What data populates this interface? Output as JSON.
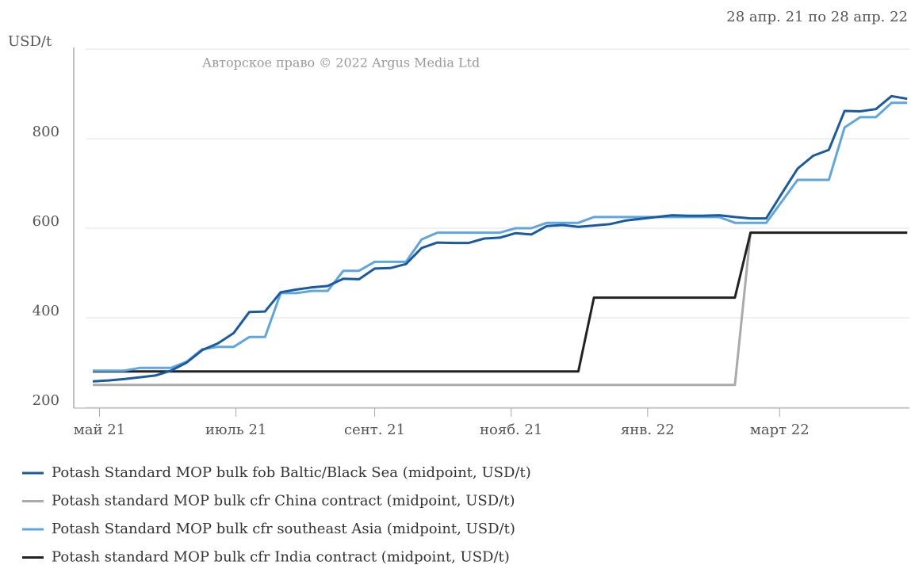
{
  "chart_data": {
    "type": "line",
    "subtitle": "28 апр. 21 по 28 апр. 22",
    "y_label": "USD/t",
    "annotation": "Авторское право © 2022 Argus Media Ltd",
    "x": [
      0,
      7,
      14,
      21,
      28,
      35,
      42,
      49,
      56,
      63,
      70,
      77,
      84,
      91,
      98,
      105,
      112,
      119,
      126,
      133,
      140,
      147,
      154,
      161,
      168,
      175,
      182,
      189,
      196,
      203,
      210,
      217,
      224,
      231,
      238,
      245,
      252,
      259,
      266,
      273,
      280,
      287,
      294,
      301,
      308,
      315,
      322,
      329,
      336,
      343,
      350,
      357,
      364
    ],
    "xlim": [
      0,
      365
    ],
    "xticks": [
      {
        "value": 3,
        "label": "май 21"
      },
      {
        "value": 64,
        "label": "июль 21"
      },
      {
        "value": 126,
        "label": "сент. 21"
      },
      {
        "value": 187,
        "label": "нояб. 21"
      },
      {
        "value": 248,
        "label": "янв. 22"
      },
      {
        "value": 307,
        "label": "март 22"
      }
    ],
    "ylim": [
      200,
      1000
    ],
    "yticks": [
      200,
      400,
      600,
      800
    ],
    "grid": true,
    "series": [
      {
        "name": "Potash Standard MOP bulk fob Baltic/Black Sea (midpoint, USD/t)",
        "color": "#1a5aa0",
        "values": [
          258,
          260,
          263,
          267,
          271,
          282,
          300,
          328,
          343,
          366,
          413,
          414,
          457,
          463,
          468,
          471,
          487,
          486,
          510,
          511,
          520,
          556,
          568,
          567,
          567,
          577,
          579,
          589,
          586,
          605,
          607,
          603,
          606,
          609,
          617,
          621,
          625,
          629,
          628,
          628,
          629,
          625,
          622,
          622,
          678,
          733,
          762,
          775,
          862,
          861,
          866,
          895,
          889
        ]
      },
      {
        "name": "Potash standard MOP bulk cfr China contract (midpoint, USD/t)",
        "color": "#aaaaaa",
        "values": [
          250,
          250,
          250,
          250,
          250,
          250,
          250,
          250,
          250,
          250,
          250,
          250,
          250,
          250,
          250,
          250,
          250,
          250,
          250,
          250,
          250,
          250,
          250,
          250,
          250,
          250,
          250,
          250,
          250,
          250,
          250,
          250,
          250,
          250,
          250,
          250,
          250,
          250,
          250,
          250,
          250,
          250,
          590,
          590,
          590,
          590,
          590,
          590,
          590,
          590,
          590,
          590,
          590
        ]
      },
      {
        "name": "Potash Standard MOP bulk cfr southeast Asia (midpoint, USD/t)",
        "color": "#5ea6dd",
        "values": [
          282,
          282,
          282,
          288,
          288,
          288,
          302,
          330,
          335,
          335,
          357,
          357,
          455,
          455,
          460,
          460,
          505,
          505,
          525,
          525,
          525,
          575,
          590,
          590,
          590,
          590,
          590,
          600,
          600,
          612,
          612,
          612,
          625,
          625,
          625,
          625,
          625,
          625,
          625,
          625,
          625,
          612,
          612,
          612,
          660,
          708,
          708,
          708,
          825,
          848,
          848,
          880,
          880
        ]
      },
      {
        "name": "Potash standard MOP bulk cfr India contract (midpoint, USD/t)",
        "color": "#222222",
        "values": [
          280,
          280,
          280,
          280,
          280,
          280,
          280,
          280,
          280,
          280,
          280,
          280,
          280,
          280,
          280,
          280,
          280,
          280,
          280,
          280,
          280,
          280,
          280,
          280,
          280,
          280,
          280,
          280,
          280,
          280,
          280,
          280,
          445,
          445,
          445,
          445,
          445,
          445,
          445,
          445,
          445,
          445,
          590,
          590,
          590,
          590,
          590,
          590,
          590,
          590,
          590,
          590,
          590
        ]
      }
    ]
  }
}
